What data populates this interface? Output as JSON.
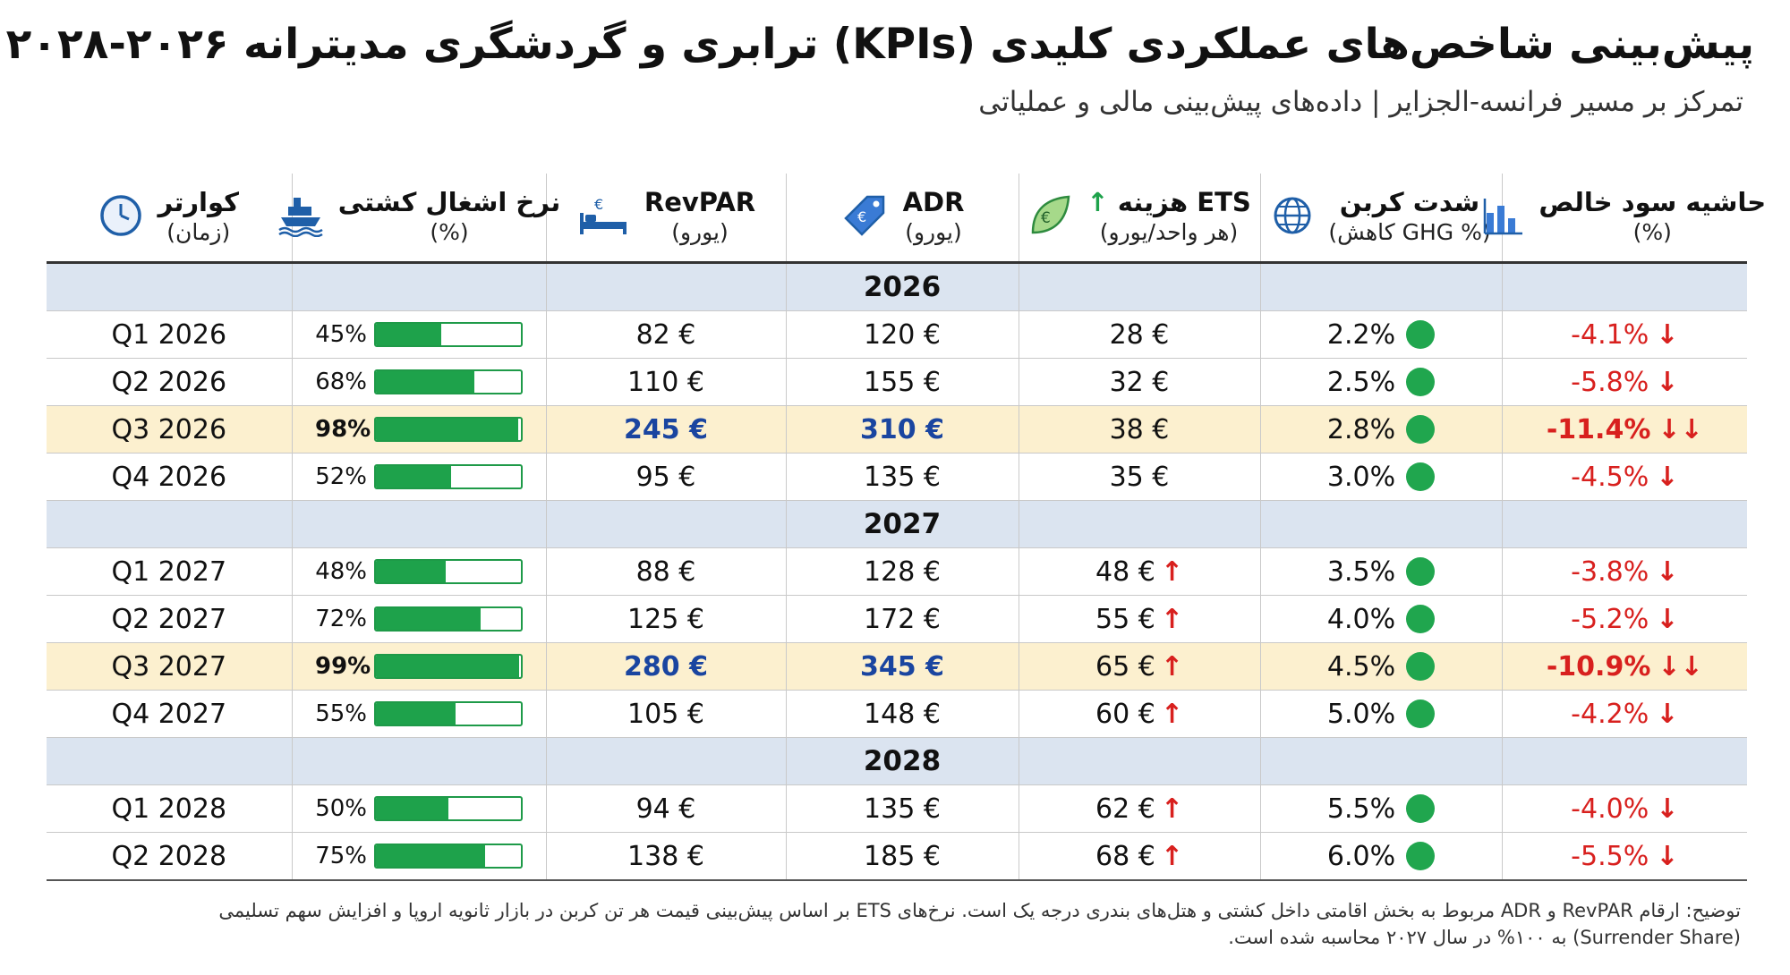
{
  "title": "پیش‌بینی شاخص‌های عملکردی کلیدی (KPIs) ترابری و گردشگری مدیترانه ۲۰۲۶-۲۰۲۸",
  "subtitle": "تمرکز بر مسیر فرانسه-الجزایر | داده‌های پیش‌بینی مالی و عملیاتی",
  "columns": {
    "quarter": {
      "name": "کوارتر",
      "unit": "(زمان)",
      "icon": "clock-icon"
    },
    "occupancy": {
      "name": "نرخ اشغال کشتی",
      "unit": "(%)",
      "icon": "ship-icon"
    },
    "revpar": {
      "name": "RevPAR",
      "unit": "(یورو)",
      "icon": "bed-euro-icon"
    },
    "adr": {
      "name": "ADR",
      "unit": "(یورو)",
      "icon": "price-tag-icon"
    },
    "ets": {
      "name": "هزینه ETS",
      "unit": "(هر واحد/یورو)",
      "icon": "leaf-euro-icon"
    },
    "carbon": {
      "name": "شدت کربن",
      "unit": "(کاهش GHG %)",
      "icon": "globe-icon"
    },
    "profit": {
      "name": "حاشیه سود خالص",
      "unit": "(%)",
      "icon": "bar-chart-icon"
    }
  },
  "colors": {
    "green": "#1ea24b",
    "red": "#d8201e",
    "blue": "#1a45a0",
    "year_band": "#dbe4f0",
    "peak_band": "#fcf0cf"
  },
  "years": [
    {
      "year": "2026",
      "rows": [
        {
          "quarter": "Q1 2026",
          "occ_label": "45%",
          "occ": 0.45,
          "revpar": "82 €",
          "adr": "120 €",
          "ets": "28 €",
          "ets_up": false,
          "carbon": "2.2%",
          "profit": "-4.1%",
          "profit_arrow": "↓",
          "peak": false
        },
        {
          "quarter": "Q2 2026",
          "occ_label": "68%",
          "occ": 0.68,
          "revpar": "110 €",
          "adr": "155 €",
          "ets": "32 €",
          "ets_up": false,
          "carbon": "2.5%",
          "profit": "-5.8%",
          "profit_arrow": "↓",
          "peak": false
        },
        {
          "quarter": "Q3 2026",
          "occ_label": "98%",
          "occ": 0.98,
          "revpar": "245 €",
          "adr": "310 €",
          "ets": "38 €",
          "ets_up": false,
          "carbon": "2.8%",
          "profit": "-11.4%",
          "profit_arrow": "↓↓",
          "peak": true
        },
        {
          "quarter": "Q4 2026",
          "occ_label": "52%",
          "occ": 0.52,
          "revpar": "95 €",
          "adr": "135 €",
          "ets": "35 €",
          "ets_up": false,
          "carbon": "3.0%",
          "profit": "-4.5%",
          "profit_arrow": "↓",
          "peak": false
        }
      ]
    },
    {
      "year": "2027",
      "rows": [
        {
          "quarter": "Q1 2027",
          "occ_label": "48%",
          "occ": 0.48,
          "revpar": "88 €",
          "adr": "128 €",
          "ets": "48 €",
          "ets_up": true,
          "carbon": "3.5%",
          "profit": "-3.8%",
          "profit_arrow": "↓",
          "peak": false
        },
        {
          "quarter": "Q2 2027",
          "occ_label": "72%",
          "occ": 0.72,
          "revpar": "125 €",
          "adr": "172 €",
          "ets": "55 €",
          "ets_up": true,
          "carbon": "4.0%",
          "profit": "-5.2%",
          "profit_arrow": "↓",
          "peak": false
        },
        {
          "quarter": "Q3 2027",
          "occ_label": "99%",
          "occ": 0.99,
          "revpar": "280 €",
          "adr": "345 €",
          "ets": "65 €",
          "ets_up": true,
          "carbon": "4.5%",
          "profit": "-10.9%",
          "profit_arrow": "↓↓",
          "peak": true
        },
        {
          "quarter": "Q4 2027",
          "occ_label": "55%",
          "occ": 0.55,
          "revpar": "105 €",
          "adr": "148 €",
          "ets": "60 €",
          "ets_up": true,
          "carbon": "5.0%",
          "profit": "-4.2%",
          "profit_arrow": "↓",
          "peak": false
        }
      ]
    },
    {
      "year": "2028",
      "rows": [
        {
          "quarter": "Q1 2028",
          "occ_label": "50%",
          "occ": 0.5,
          "revpar": "94 €",
          "adr": "135 €",
          "ets": "62 €",
          "ets_up": true,
          "carbon": "5.5%",
          "profit": "-4.0%",
          "profit_arrow": "↓",
          "peak": false
        },
        {
          "quarter": "Q2 2028",
          "occ_label": "75%",
          "occ": 0.75,
          "revpar": "138 €",
          "adr": "185 €",
          "ets": "68 €",
          "ets_up": true,
          "carbon": "6.0%",
          "profit": "-5.5%",
          "profit_arrow": "↓",
          "peak": false
        }
      ]
    }
  ],
  "note": "توضیح: ارقام RevPAR و ADR مربوط به بخش اقامتی داخل کشتی و هتل‌های بندری درجه یک است. نرخ‌های ETS بر اساس پیش‌بینی قیمت هر تن کربن در بازار ثانویه اروپا و افزایش سهم تسلیمی (Surrender Share) به ۱۰۰% در سال ۲۰۲۷ محاسبه شده است."
}
